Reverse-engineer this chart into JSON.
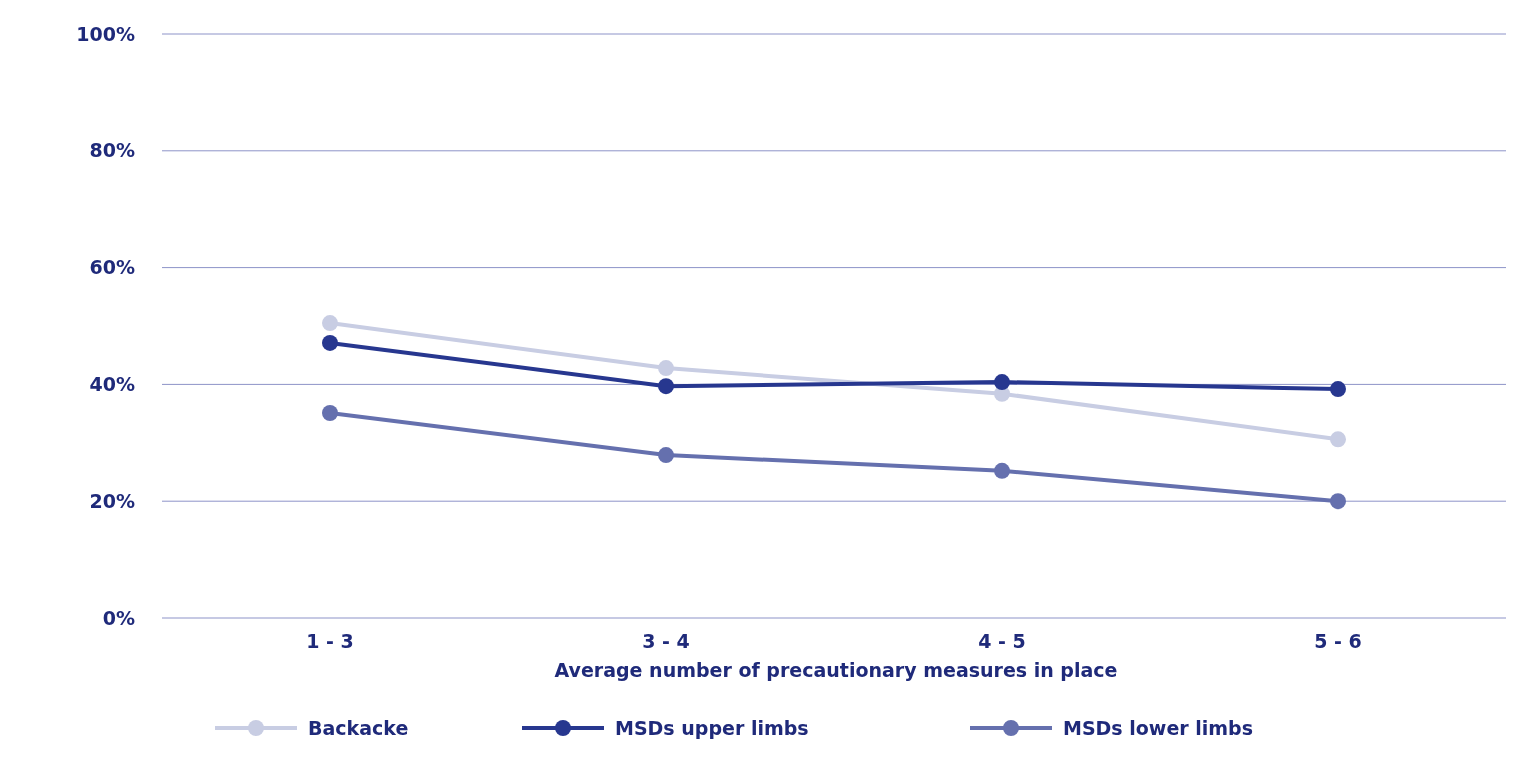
{
  "chart_data": {
    "type": "line",
    "xlabel": "Average number of precautionary measures in place",
    "categories": [
      "1 - 3",
      "3 - 4",
      "4 - 5",
      "5 - 6"
    ],
    "series": [
      {
        "name": "Backacke",
        "color": "#c8cde3",
        "values": [
          50.5,
          42.8,
          38.4,
          30.6
        ]
      },
      {
        "name": "MSDs upper limbs",
        "color": "#27378f",
        "values": [
          47.1,
          39.7,
          40.4,
          39.2
        ]
      },
      {
        "name": "MSDs lower limbs",
        "color": "#6570ae",
        "values": [
          35.1,
          27.9,
          25.2,
          20.0
        ]
      }
    ],
    "ylim": [
      0,
      100
    ],
    "yticks": [
      {
        "value": 0,
        "label": "0%"
      },
      {
        "value": 20,
        "label": "20%"
      },
      {
        "value": 40,
        "label": "40%"
      },
      {
        "value": 60,
        "label": "60%"
      },
      {
        "value": 80,
        "label": "80%"
      },
      {
        "value": 100,
        "label": "100%"
      }
    ],
    "grid": "y",
    "legend": "bottom",
    "marker": "circle",
    "line_style": "solid"
  }
}
